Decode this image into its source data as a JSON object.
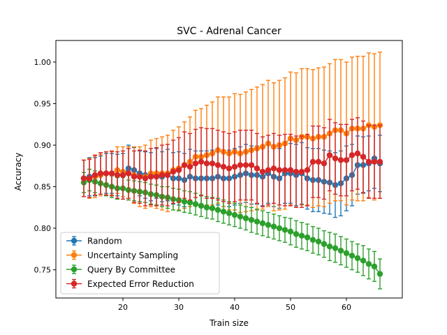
{
  "chart_data": {
    "type": "line",
    "title": "SVC - Adrenal Cancer",
    "xlabel": "Train size",
    "ylabel": "Accuracy",
    "xlim": [
      8,
      70
    ],
    "ylim": [
      0.716,
      1.026
    ],
    "xticks": [
      20,
      30,
      40,
      50,
      60
    ],
    "xtick_labels": [
      "20",
      "30",
      "40",
      "50",
      "60"
    ],
    "yticks": [
      0.75,
      0.8,
      0.85,
      0.9,
      0.95,
      1.0
    ],
    "ytick_labels": [
      "0.75",
      "0.80",
      "0.85",
      "0.90",
      "0.95",
      "1.00"
    ],
    "grid": false,
    "legend_position": "lower-left",
    "x": [
      13,
      14,
      15,
      16,
      17,
      18,
      19,
      20,
      21,
      22,
      23,
      24,
      25,
      26,
      27,
      28,
      29,
      30,
      31,
      32,
      33,
      34,
      35,
      36,
      37,
      38,
      39,
      40,
      41,
      42,
      43,
      44,
      45,
      46,
      47,
      48,
      49,
      50,
      51,
      52,
      53,
      54,
      55,
      56,
      57,
      58,
      59,
      60,
      61,
      62,
      63,
      64,
      65,
      66
    ],
    "series": [
      {
        "name": "Random",
        "color": "#1f77b4",
        "values": [
          0.86,
          0.862,
          0.862,
          0.864,
          0.866,
          0.866,
          0.864,
          0.864,
          0.872,
          0.87,
          0.866,
          0.864,
          0.862,
          0.866,
          0.862,
          0.864,
          0.86,
          0.86,
          0.858,
          0.862,
          0.86,
          0.86,
          0.86,
          0.86,
          0.862,
          0.86,
          0.86,
          0.862,
          0.864,
          0.866,
          0.864,
          0.864,
          0.862,
          0.866,
          0.862,
          0.86,
          0.866,
          0.866,
          0.864,
          0.866,
          0.86,
          0.858,
          0.858,
          0.856,
          0.855,
          0.852,
          0.854,
          0.86,
          0.864,
          0.876,
          0.876,
          0.878,
          0.884,
          0.878
        ],
        "err": [
          0.022,
          0.023,
          0.023,
          0.023,
          0.024,
          0.024,
          0.025,
          0.026,
          0.028,
          0.027,
          0.027,
          0.028,
          0.029,
          0.03,
          0.03,
          0.031,
          0.031,
          0.032,
          0.032,
          0.033,
          0.033,
          0.033,
          0.033,
          0.034,
          0.034,
          0.034,
          0.034,
          0.034,
          0.034,
          0.035,
          0.035,
          0.035,
          0.035,
          0.036,
          0.036,
          0.036,
          0.036,
          0.036,
          0.037,
          0.037,
          0.037,
          0.038,
          0.038,
          0.038,
          0.038,
          0.039,
          0.039,
          0.039,
          0.037,
          0.035,
          0.034,
          0.033,
          0.036,
          0.034
        ]
      },
      {
        "name": "Uncertainty Sampling",
        "color": "#ff7f0e",
        "values": [
          0.86,
          0.86,
          0.862,
          0.864,
          0.866,
          0.866,
          0.87,
          0.868,
          0.866,
          0.864,
          0.862,
          0.862,
          0.866,
          0.866,
          0.866,
          0.866,
          0.87,
          0.872,
          0.876,
          0.88,
          0.886,
          0.886,
          0.888,
          0.89,
          0.894,
          0.892,
          0.89,
          0.892,
          0.89,
          0.892,
          0.894,
          0.896,
          0.898,
          0.902,
          0.898,
          0.9,
          0.902,
          0.908,
          0.906,
          0.91,
          0.91,
          0.908,
          0.91,
          0.91,
          0.914,
          0.918,
          0.918,
          0.914,
          0.92,
          0.92,
          0.92,
          0.924,
          0.922,
          0.924
        ],
        "err": [
          0.022,
          0.024,
          0.025,
          0.025,
          0.026,
          0.026,
          0.028,
          0.03,
          0.032,
          0.034,
          0.036,
          0.038,
          0.04,
          0.042,
          0.044,
          0.046,
          0.048,
          0.05,
          0.052,
          0.054,
          0.056,
          0.058,
          0.06,
          0.062,
          0.064,
          0.066,
          0.068,
          0.07,
          0.071,
          0.072,
          0.073,
          0.074,
          0.075,
          0.076,
          0.077,
          0.078,
          0.079,
          0.08,
          0.081,
          0.082,
          0.082,
          0.083,
          0.083,
          0.084,
          0.084,
          0.085,
          0.085,
          0.086,
          0.086,
          0.087,
          0.087,
          0.087,
          0.088,
          0.088
        ]
      },
      {
        "name": "Query By Committee",
        "color": "#2ca02c",
        "values": [
          0.855,
          0.858,
          0.856,
          0.854,
          0.852,
          0.85,
          0.848,
          0.848,
          0.846,
          0.845,
          0.844,
          0.843,
          0.841,
          0.84,
          0.838,
          0.837,
          0.835,
          0.834,
          0.832,
          0.831,
          0.829,
          0.827,
          0.825,
          0.824,
          0.822,
          0.82,
          0.818,
          0.816,
          0.814,
          0.812,
          0.81,
          0.808,
          0.806,
          0.804,
          0.802,
          0.8,
          0.798,
          0.796,
          0.793,
          0.791,
          0.789,
          0.786,
          0.784,
          0.781,
          0.778,
          0.776,
          0.773,
          0.77,
          0.767,
          0.764,
          0.761,
          0.757,
          0.754,
          0.745
        ],
        "err": [
          0.012,
          0.013,
          0.013,
          0.013,
          0.013,
          0.013,
          0.013,
          0.013,
          0.012,
          0.012,
          0.012,
          0.012,
          0.012,
          0.012,
          0.012,
          0.013,
          0.013,
          0.013,
          0.013,
          0.013,
          0.013,
          0.013,
          0.013,
          0.013,
          0.014,
          0.014,
          0.014,
          0.014,
          0.014,
          0.014,
          0.015,
          0.015,
          0.015,
          0.015,
          0.015,
          0.015,
          0.015,
          0.016,
          0.016,
          0.016,
          0.016,
          0.016,
          0.016,
          0.016,
          0.017,
          0.017,
          0.017,
          0.017,
          0.017,
          0.017,
          0.018,
          0.018,
          0.018,
          0.018
        ]
      },
      {
        "name": "Expected Error Reduction",
        "color": "#d62728",
        "values": [
          0.86,
          0.86,
          0.864,
          0.866,
          0.866,
          0.866,
          0.864,
          0.864,
          0.866,
          0.862,
          0.862,
          0.86,
          0.862,
          0.862,
          0.864,
          0.864,
          0.868,
          0.87,
          0.876,
          0.874,
          0.878,
          0.88,
          0.878,
          0.878,
          0.876,
          0.874,
          0.872,
          0.874,
          0.876,
          0.876,
          0.876,
          0.872,
          0.868,
          0.87,
          0.872,
          0.87,
          0.87,
          0.87,
          0.868,
          0.868,
          0.87,
          0.88,
          0.88,
          0.878,
          0.888,
          0.884,
          0.882,
          0.882,
          0.888,
          0.89,
          0.886,
          0.88,
          0.88,
          0.88
        ],
        "err": [
          0.022,
          0.023,
          0.024,
          0.025,
          0.026,
          0.027,
          0.028,
          0.029,
          0.03,
          0.031,
          0.032,
          0.033,
          0.034,
          0.035,
          0.036,
          0.037,
          0.038,
          0.039,
          0.04,
          0.04,
          0.041,
          0.041,
          0.042,
          0.042,
          0.042,
          0.042,
          0.042,
          0.042,
          0.042,
          0.042,
          0.042,
          0.042,
          0.042,
          0.042,
          0.042,
          0.042,
          0.043,
          0.043,
          0.043,
          0.043,
          0.043,
          0.043,
          0.043,
          0.043,
          0.043,
          0.043,
          0.043,
          0.043,
          0.043,
          0.043,
          0.043,
          0.044,
          0.044,
          0.044
        ]
      }
    ]
  }
}
